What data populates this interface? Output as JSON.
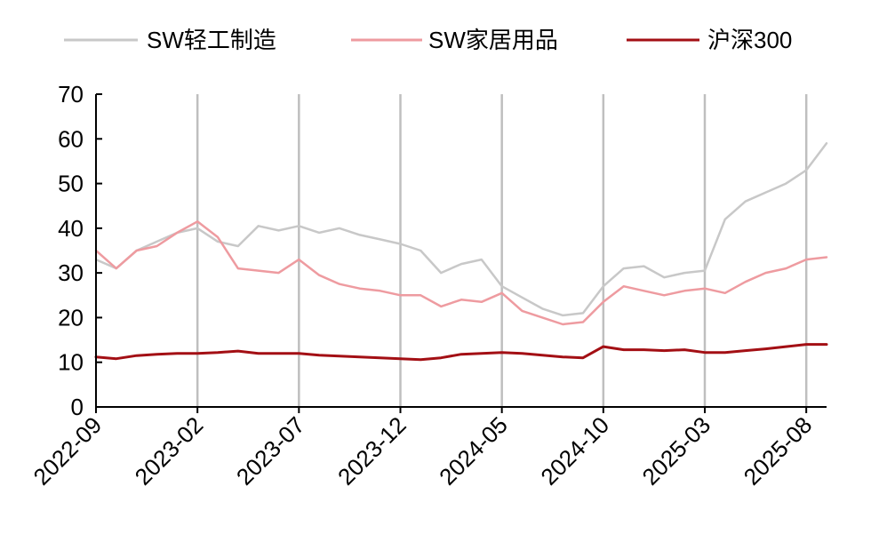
{
  "chart_data": {
    "type": "line",
    "title": "",
    "xlabel": "",
    "ylabel": "",
    "ylim": [
      0,
      70
    ],
    "yticks": [
      0,
      10,
      20,
      30,
      40,
      50,
      60,
      70
    ],
    "x_tick_labels": [
      "2022-09",
      "2023-02",
      "2023-07",
      "2023-12",
      "2024-05",
      "2024-10",
      "2025-03",
      "2025-08"
    ],
    "x_tick_months": [
      "2022-09",
      "2023-02",
      "2023-07",
      "2023-12",
      "2024-05",
      "2024-10",
      "2025-03",
      "2025-08"
    ],
    "x_start": "2022-09",
    "x_end": "2025-09",
    "grid": "vertical lines at x ticks",
    "legend_position": "top",
    "series": [
      {
        "name": "SW轻工制造",
        "color": "#c8c8c8",
        "x": [
          "2022-09",
          "2022-10",
          "2022-11",
          "2022-12",
          "2023-01",
          "2023-02",
          "2023-03",
          "2023-04",
          "2023-05",
          "2023-06",
          "2023-07",
          "2023-08",
          "2023-09",
          "2023-10",
          "2023-11",
          "2023-12",
          "2024-01",
          "2024-02",
          "2024-03",
          "2024-04",
          "2024-05",
          "2024-06",
          "2024-07",
          "2024-08",
          "2024-09",
          "2024-10",
          "2024-11",
          "2024-12",
          "2025-01",
          "2025-02",
          "2025-03",
          "2025-04",
          "2025-05",
          "2025-06",
          "2025-07",
          "2025-08",
          "2025-09"
        ],
        "values": [
          33,
          31,
          35,
          37,
          39,
          40,
          37,
          36,
          40.5,
          39.5,
          40.5,
          39,
          40,
          38.5,
          37.5,
          36.5,
          35,
          30,
          32,
          33,
          27,
          24.5,
          22,
          20.5,
          21,
          27,
          31,
          31.5,
          29,
          30,
          30.5,
          42,
          46,
          48,
          50,
          53,
          59
        ]
      },
      {
        "name": "SW家居用品",
        "color": "#ee9ba0",
        "x": [
          "2022-09",
          "2022-10",
          "2022-11",
          "2022-12",
          "2023-01",
          "2023-02",
          "2023-03",
          "2023-04",
          "2023-05",
          "2023-06",
          "2023-07",
          "2023-08",
          "2023-09",
          "2023-10",
          "2023-11",
          "2023-12",
          "2024-01",
          "2024-02",
          "2024-03",
          "2024-04",
          "2024-05",
          "2024-06",
          "2024-07",
          "2024-08",
          "2024-09",
          "2024-10",
          "2024-11",
          "2024-12",
          "2025-01",
          "2025-02",
          "2025-03",
          "2025-04",
          "2025-05",
          "2025-06",
          "2025-07",
          "2025-08",
          "2025-09"
        ],
        "values": [
          35,
          31,
          35,
          36,
          39,
          41.5,
          38,
          31,
          30.5,
          30,
          33,
          29.5,
          27.5,
          26.5,
          26,
          25,
          25,
          22.5,
          24,
          23.5,
          25.5,
          21.5,
          20,
          18.5,
          19,
          23.5,
          27,
          26,
          25,
          26,
          26.5,
          25.5,
          28,
          30,
          31,
          33,
          33.5
        ]
      },
      {
        "name": "沪深300",
        "color": "#a30f14",
        "x": [
          "2022-09",
          "2022-10",
          "2022-11",
          "2022-12",
          "2023-01",
          "2023-02",
          "2023-03",
          "2023-04",
          "2023-05",
          "2023-06",
          "2023-07",
          "2023-08",
          "2023-09",
          "2023-10",
          "2023-11",
          "2023-12",
          "2024-01",
          "2024-02",
          "2024-03",
          "2024-04",
          "2024-05",
          "2024-06",
          "2024-07",
          "2024-08",
          "2024-09",
          "2024-10",
          "2024-11",
          "2024-12",
          "2025-01",
          "2025-02",
          "2025-03",
          "2025-04",
          "2025-05",
          "2025-06",
          "2025-07",
          "2025-08",
          "2025-09"
        ],
        "values": [
          11.2,
          10.8,
          11.5,
          11.8,
          12,
          12,
          12.2,
          12.5,
          12,
          12,
          12,
          11.6,
          11.4,
          11.2,
          11,
          10.8,
          10.6,
          11,
          11.8,
          12,
          12.2,
          12,
          11.6,
          11.2,
          11,
          13.5,
          12.8,
          12.8,
          12.6,
          12.8,
          12.2,
          12.2,
          12.6,
          13,
          13.5,
          14,
          14
        ]
      }
    ]
  }
}
